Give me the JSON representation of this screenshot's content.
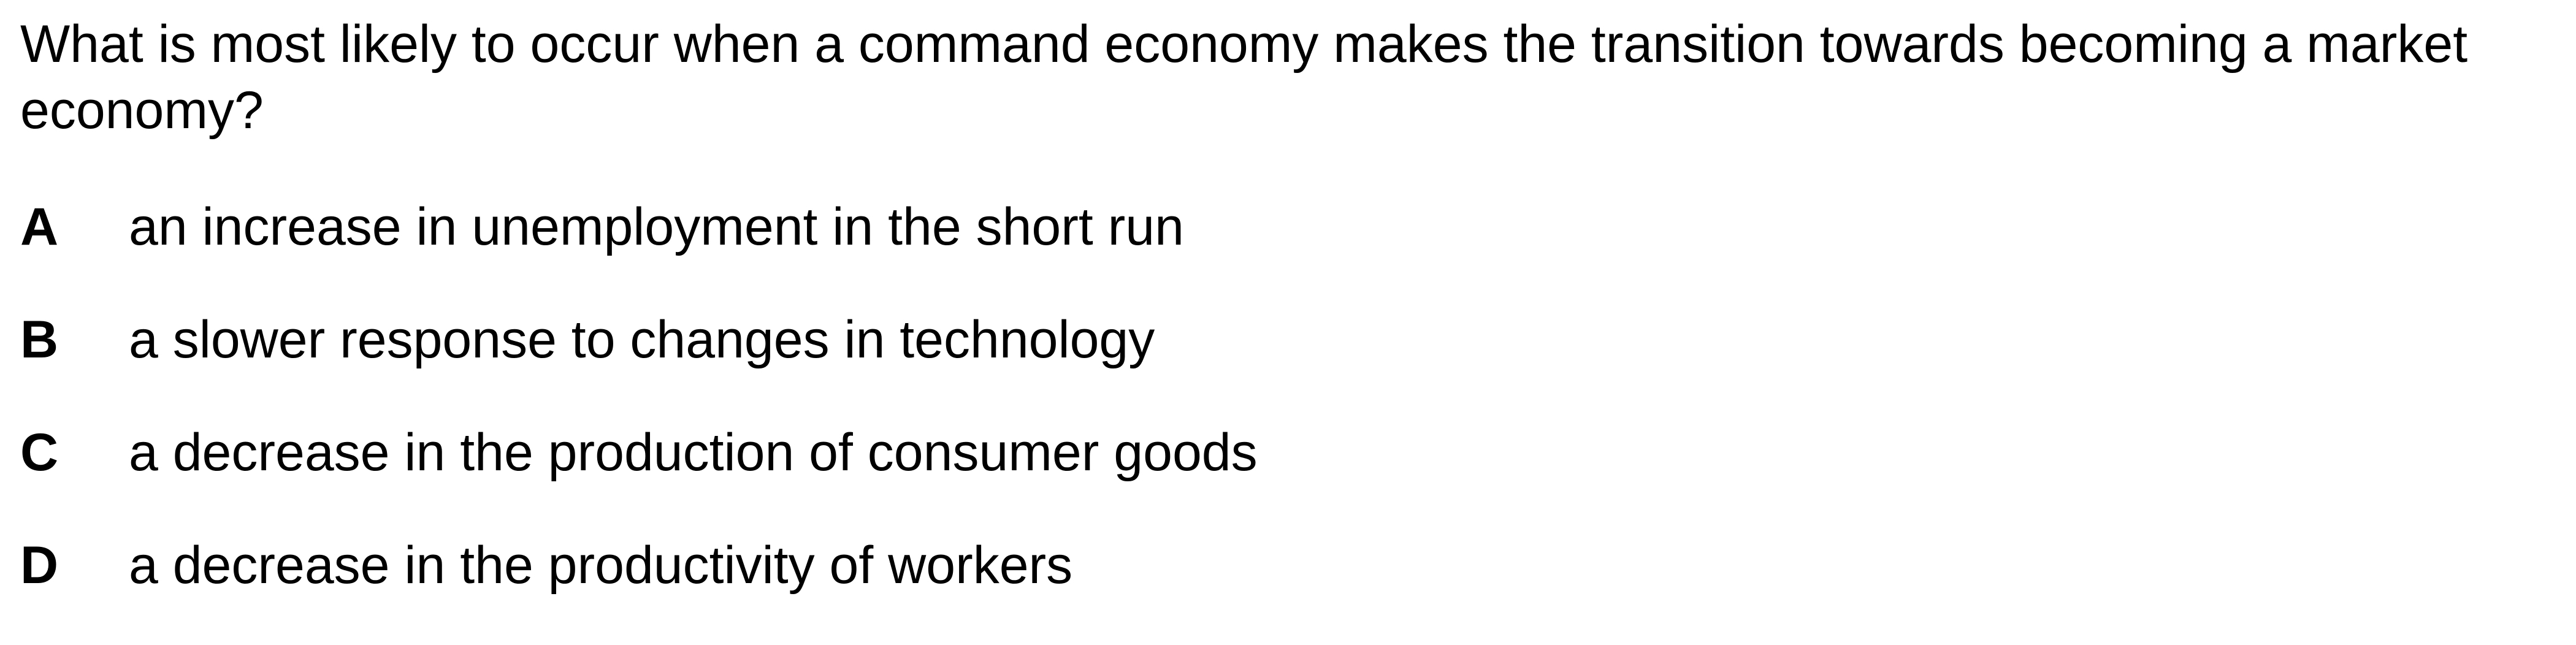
{
  "question": {
    "text": "What is most likely to occur when a command economy makes the transition towards becoming a market economy?"
  },
  "options": [
    {
      "letter": "A",
      "text": "an increase in unemployment in the short run"
    },
    {
      "letter": "B",
      "text": "a slower response to changes in technology"
    },
    {
      "letter": "C",
      "text": "a decrease in the production of consumer goods"
    },
    {
      "letter": "D",
      "text": "a decrease in the productivity of workers"
    }
  ]
}
